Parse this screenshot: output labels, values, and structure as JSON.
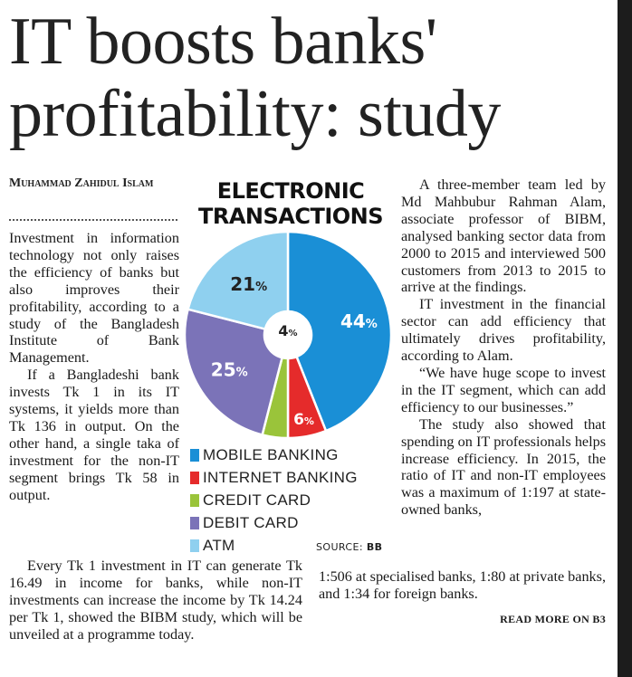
{
  "headline": "IT boosts banks' profitability: study",
  "byline": "Muhammad Zahidul Islam",
  "column1": {
    "p1": "Investment in information technology not only raises the efficiency of banks but also improves their profitability, according to a study of the Bangladesh Institute of Bank Management.",
    "p2": "If a Bangladeshi bank invests Tk 1 in its IT systems, it yields more than Tk 136 in output. On the other hand, a single taka of investment for the non-IT segment brings Tk 58 in output.",
    "p3": "Every Tk 1 investment in IT can generate Tk 16.49 in income for banks, while non-IT investments can increase the income by Tk 14.24 per Tk 1, showed the BIBM study, which will be unveiled at a programme today."
  },
  "column3": {
    "p1": "A three-member team led by Md Mahbubur Rahman Alam, associate professor of BIBM, analysed banking sector data from 2000 to 2015 and interviewed 500 customers from 2013 to 2015 to arrive at the findings.",
    "p2": "IT investment in the financial sector can add efficiency that ultimately drives profitability, according to Alam.",
    "p3": "“We have huge scope to invest in the IT segment, which can add efficiency to our businesses.”",
    "p4": "The study also showed that spending on IT professionals helps increase efficiency. In 2015, the ratio of IT and non-IT employees was a maximum of 1:197 at state-owned banks,",
    "p4_cont": "1:506 at specialised banks, 1:80 at private banks, and 1:34 for foreign banks."
  },
  "read_more": "READ MORE ON B3",
  "chart_data": {
    "type": "pie",
    "title": "ELECTRONIC TRANSACTIONS",
    "source_label": "SOURCE:",
    "source_value": "BB",
    "slices": [
      {
        "name": "MOBILE BANKING",
        "value": 44,
        "label": "44",
        "color": "#1a8fd6"
      },
      {
        "name": "INTERNET BANKING",
        "value": 6,
        "label": "6",
        "color": "#e52b2b"
      },
      {
        "name": "CREDIT CARD",
        "value": 4,
        "label": "4",
        "color": "#9ac43a"
      },
      {
        "name": "DEBIT CARD",
        "value": 25,
        "label": "25",
        "color": "#7b73b8"
      },
      {
        "name": "ATM",
        "value": 21,
        "label": "21",
        "color": "#8fd0ef"
      }
    ],
    "unit": "%",
    "style": "donut"
  }
}
